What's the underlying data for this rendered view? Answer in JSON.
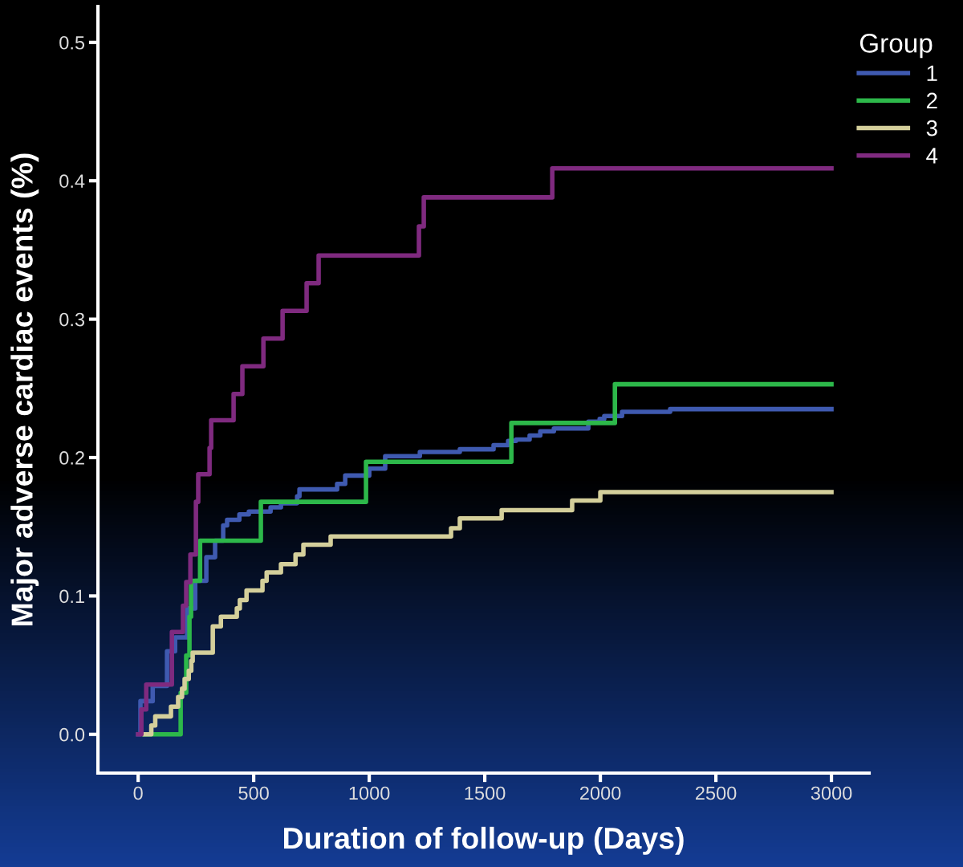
{
  "chart_data": {
    "type": "step",
    "xlabel": "Duration of follow-up (Days)",
    "ylabel": "Major adverse cardiac events (%)",
    "legend_title": "Group",
    "legend": "top right",
    "grid": false,
    "xlim": [
      -174,
      3163
    ],
    "ylim": [
      -0.028,
      0.526
    ],
    "xticks": [
      0,
      500,
      1000,
      1500,
      2000,
      2500,
      3000
    ],
    "yticks": [
      {
        "value": 0,
        "label": "0.0"
      },
      {
        "value": 0.1,
        "label": "0.1"
      },
      {
        "value": 0.2,
        "label": "0.2"
      },
      {
        "value": 0.3,
        "label": "0.3"
      },
      {
        "value": 0.4,
        "label": "0.4"
      },
      {
        "value": 0.5,
        "label": "0.5"
      }
    ],
    "series": [
      {
        "name": "1",
        "color": "#3f5ab0",
        "x": [
          0,
          10,
          63,
          125,
          160,
          212,
          247,
          295,
          333,
          368,
          385,
          438,
          479,
          573,
          618,
          688,
          698,
          861,
          896,
          1000,
          1069,
          1219,
          1392,
          1538,
          1601,
          1635,
          1694,
          1740,
          1799,
          1948,
          1997,
          2017,
          2094,
          2302,
          3000
        ],
        "values": [
          0,
          0.024,
          0.035,
          0.06,
          0.07,
          0.091,
          0.111,
          0.128,
          0.14,
          0.151,
          0.155,
          0.159,
          0.161,
          0.164,
          0.167,
          0.172,
          0.177,
          0.181,
          0.187,
          0.192,
          0.201,
          0.204,
          0.206,
          0.209,
          0.212,
          0.213,
          0.216,
          0.219,
          0.221,
          0.226,
          0.228,
          0.23,
          0.233,
          0.235,
          0.235
        ]
      },
      {
        "name": "2",
        "color": "#2db84a",
        "x": [
          28,
          184,
          208,
          222,
          229,
          268,
          531,
          986,
          1615,
          2063,
          3000
        ],
        "values": [
          0,
          0.03,
          0.057,
          0.085,
          0.111,
          0.14,
          0.168,
          0.197,
          0.225,
          0.253,
          0.253
        ]
      },
      {
        "name": "3",
        "color": "#d4cf9b",
        "x": [
          28,
          57,
          74,
          142,
          173,
          190,
          201,
          219,
          230,
          236,
          323,
          358,
          427,
          440,
          469,
          538,
          556,
          618,
          681,
          715,
          833,
          1354,
          1392,
          1573,
          1878,
          2000,
          3000
        ],
        "values": [
          0,
          0.0064,
          0.013,
          0.02,
          0.027,
          0.033,
          0.04,
          0.046,
          0.053,
          0.059,
          0.078,
          0.085,
          0.091,
          0.097,
          0.104,
          0.111,
          0.117,
          0.123,
          0.13,
          0.137,
          0.143,
          0.149,
          0.156,
          0.162,
          0.169,
          0.175,
          0.175
        ]
      },
      {
        "name": "4",
        "color": "#7f2a7f",
        "x": [
          0,
          14,
          35,
          146,
          194,
          208,
          226,
          250,
          260,
          309,
          316,
          413,
          451,
          542,
          625,
          729,
          781,
          1215,
          1236,
          1792,
          3000
        ],
        "values": [
          0,
          0.018,
          0.036,
          0.074,
          0.093,
          0.11,
          0.13,
          0.168,
          0.188,
          0.207,
          0.227,
          0.246,
          0.266,
          0.286,
          0.306,
          0.326,
          0.346,
          0.367,
          0.388,
          0.409,
          0.409
        ]
      }
    ]
  }
}
